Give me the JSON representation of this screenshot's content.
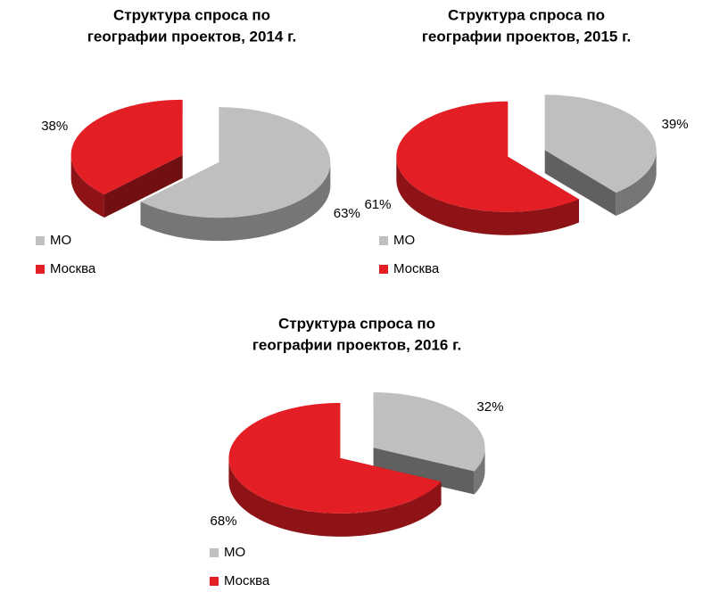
{
  "chart_data": [
    {
      "type": "pie",
      "title": [
        "Структура  спроса по",
        "географии проектов, 2014 г."
      ],
      "categories": [
        "МО",
        "Москва"
      ],
      "values": [
        63,
        38
      ],
      "value_labels": [
        "63%",
        "38%"
      ],
      "colors": [
        "#bfbfbf",
        "#e31e24"
      ],
      "legend": "bottom-left"
    },
    {
      "type": "pie",
      "title": [
        "Структура  спроса по",
        "географии проектов, 2015 г."
      ],
      "categories": [
        "МО",
        "Москва"
      ],
      "values": [
        39,
        61
      ],
      "value_labels": [
        "39%",
        "61%"
      ],
      "colors": [
        "#bfbfbf",
        "#e31e24"
      ],
      "legend": "bottom-left"
    },
    {
      "type": "pie",
      "title": [
        "Структура  спроса по",
        "географии проектов, 2016 г."
      ],
      "categories": [
        "МО",
        "Москва"
      ],
      "values": [
        32,
        68
      ],
      "value_labels": [
        "32%",
        "68%"
      ],
      "colors": [
        "#bfbfbf",
        "#e31e24"
      ],
      "legend": "bottom-left"
    }
  ]
}
